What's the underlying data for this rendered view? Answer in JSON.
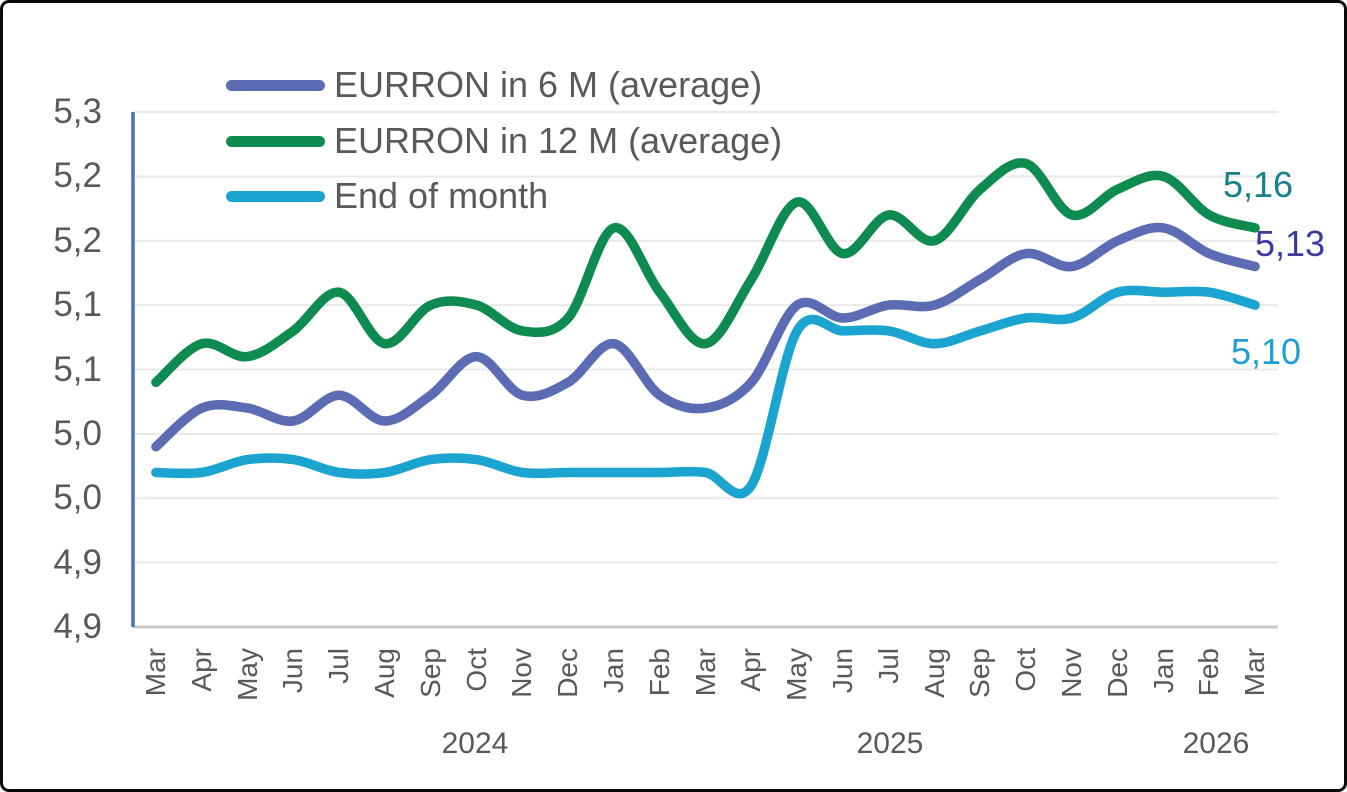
{
  "chart_data": {
    "type": "line",
    "title": "",
    "x_categories": [
      "Mar",
      "Apr",
      "May",
      "Jun",
      "Jul",
      "Aug",
      "Sep",
      "Oct",
      "Nov",
      "Dec",
      "Jan",
      "Feb",
      "Mar",
      "Apr",
      "May",
      "Jun",
      "Jul",
      "Aug",
      "Sep",
      "Oct",
      "Nov",
      "Dec",
      "Jan",
      "Feb",
      "Mar"
    ],
    "x_year_labels": [
      "2024",
      "2025",
      "2026"
    ],
    "x_range_note": "Mar 2024 through Mar 2026, monthly",
    "y_tick_labels": [
      "5,3",
      "5,2",
      "5,2",
      "5,1",
      "5,1",
      "5,0",
      "5,0",
      "4,9",
      "4,9"
    ],
    "ylim": [
      4.85,
      5.25
    ],
    "y_step": 0.05,
    "grid": true,
    "legend_position": "top-left",
    "axis_color": "#4472C4",
    "gridline_color": "#E9E9E9",
    "bottom_axis_color": "#C9C9C9",
    "text_color": "#595959",
    "series": [
      {
        "name": "EURRON in 6 M (average)",
        "color": "#5B6BB4",
        "end_label": "5,13",
        "end_label_color": "#3B3B9E",
        "values": [
          4.99,
          5.02,
          5.02,
          5.01,
          5.03,
          5.01,
          5.03,
          5.06,
          5.03,
          5.04,
          5.07,
          5.03,
          5.02,
          5.04,
          5.1,
          5.09,
          5.1,
          5.1,
          5.12,
          5.14,
          5.13,
          5.15,
          5.16,
          5.14,
          5.13
        ]
      },
      {
        "name": "EURRON in 12 M (average)",
        "color": "#0E8B4F",
        "end_label": "5,16",
        "end_label_color": "#16808D",
        "values": [
          5.04,
          5.07,
          5.06,
          5.08,
          5.11,
          5.07,
          5.1,
          5.1,
          5.08,
          5.09,
          5.16,
          5.11,
          5.07,
          5.12,
          5.18,
          5.14,
          5.17,
          5.15,
          5.19,
          5.21,
          5.17,
          5.19,
          5.2,
          5.17,
          5.16
        ]
      },
      {
        "name": "End of month",
        "color": "#1AA4CF",
        "end_label": "5,10",
        "end_label_color": "#1C9FD8",
        "values": [
          4.97,
          4.97,
          4.98,
          4.98,
          4.97,
          4.97,
          4.98,
          4.98,
          4.97,
          4.97,
          4.97,
          4.97,
          4.97,
          4.96,
          5.08,
          5.08,
          5.08,
          5.07,
          5.08,
          5.09,
          5.09,
          5.11,
          5.11,
          5.11,
          5.1
        ]
      }
    ]
  }
}
